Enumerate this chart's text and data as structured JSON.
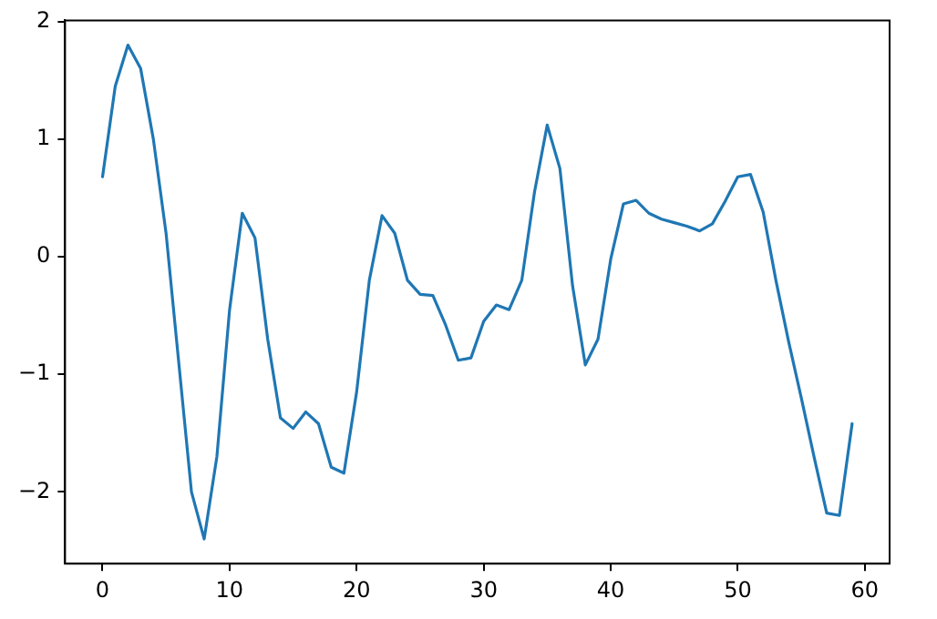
{
  "chart_data": {
    "type": "line",
    "x": [
      0,
      1,
      2,
      3,
      4,
      5,
      6,
      7,
      8,
      9,
      10,
      11,
      12,
      13,
      14,
      15,
      16,
      17,
      18,
      19,
      20,
      21,
      22,
      23,
      24,
      25,
      26,
      27,
      28,
      29,
      30,
      31,
      32,
      33,
      34,
      35,
      36,
      37,
      38,
      39,
      40,
      41,
      42,
      43,
      44,
      45,
      46,
      47,
      48,
      49,
      50,
      51,
      52,
      53,
      54,
      55,
      56,
      57,
      58,
      59
    ],
    "series": [
      {
        "color": "#1f77b4",
        "values": [
          0.68,
          1.45,
          1.8,
          1.6,
          1.0,
          0.2,
          -0.9,
          -2.0,
          -2.4,
          -1.7,
          -0.45,
          0.37,
          0.16,
          -0.7,
          -1.37,
          -1.46,
          -1.32,
          -1.42,
          -1.79,
          -1.84,
          -1.15,
          -0.2,
          0.35,
          0.2,
          -0.2,
          -0.32,
          -0.33,
          -0.58,
          -0.88,
          -0.86,
          -0.55,
          -0.41,
          -0.45,
          -0.2,
          0.55,
          1.12,
          0.75,
          -0.25,
          -0.92,
          -0.7,
          -0.02,
          0.45,
          0.48,
          0.37,
          0.32,
          0.29,
          0.26,
          0.22,
          0.28,
          0.47,
          0.68,
          0.7,
          0.38,
          -0.2,
          -0.72,
          -1.2,
          -1.7,
          -2.18,
          -2.2,
          -1.42
        ]
      }
    ],
    "xlim": [
      -2.95,
      61.95
    ],
    "xticks": [
      0,
      10,
      20,
      30,
      40,
      50,
      60
    ],
    "ylim": [
      -2.61,
      2.01
    ],
    "yticks": [
      -2,
      -1,
      0,
      1,
      2
    ],
    "grid": false,
    "legend": false,
    "marker": "none",
    "line_style": "solid"
  }
}
